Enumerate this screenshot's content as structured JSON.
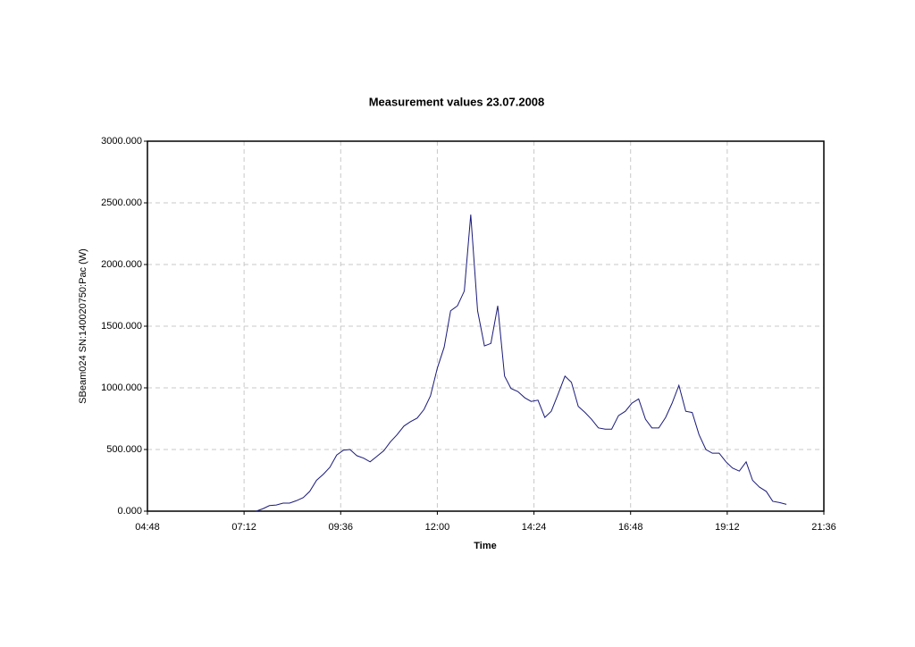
{
  "chart_data": {
    "type": "line",
    "title": "Measurement values 23.07.2008",
    "x_label": "Time",
    "y_label": "SBeam024 SN:140020750:Pac (W)",
    "x": [
      7.5,
      7.67,
      7.83,
      8,
      8.17,
      8.33,
      8.5,
      8.67,
      8.83,
      9,
      9.17,
      9.33,
      9.5,
      9.67,
      9.83,
      10,
      10.17,
      10.33,
      10.5,
      10.67,
      10.83,
      11,
      11.17,
      11.33,
      11.5,
      11.67,
      11.83,
      12,
      12.17,
      12.33,
      12.5,
      12.67,
      12.83,
      13,
      13.17,
      13.33,
      13.5,
      13.67,
      13.83,
      14,
      14.17,
      14.33,
      14.5,
      14.67,
      14.83,
      15,
      15.17,
      15.33,
      15.5,
      15.67,
      15.83,
      16,
      16.17,
      16.33,
      16.5,
      16.67,
      16.83,
      17,
      17.17,
      17.33,
      17.5,
      17.67,
      17.83,
      18,
      18.17,
      18.33,
      18.5,
      18.67,
      18.83,
      19,
      19.17,
      19.33,
      19.5,
      19.67,
      19.83,
      20,
      20.17,
      20.33,
      20.5,
      20.67
    ],
    "series": [
      {
        "name": "SBeam024 SN:140020750:Pac (W)",
        "color": "#1a1a7a",
        "values": [
          0,
          20,
          45,
          50,
          65,
          65,
          85,
          110,
          160,
          250,
          300,
          355,
          455,
          495,
          500,
          450,
          430,
          400,
          445,
          490,
          560,
          620,
          690,
          725,
          755,
          825,
          935,
          1160,
          1330,
          1625,
          1665,
          1785,
          2405,
          1625,
          1340,
          1360,
          1665,
          1095,
          995,
          970,
          920,
          890,
          900,
          760,
          810,
          950,
          1095,
          1045,
          850,
          800,
          745,
          675,
          665,
          665,
          775,
          810,
          875,
          910,
          745,
          675,
          675,
          760,
          875,
          1020,
          810,
          800,
          620,
          500,
          470,
          470,
          400,
          350,
          325,
          400,
          250,
          195,
          160,
          80,
          70,
          55
        ]
      }
    ],
    "xlim": [
      4.8,
      21.6
    ],
    "xticks": [
      {
        "value": 4.8,
        "label": "04:48"
      },
      {
        "value": 7.2,
        "label": "07:12"
      },
      {
        "value": 9.6,
        "label": "09:36"
      },
      {
        "value": 12,
        "label": "12:00"
      },
      {
        "value": 14.4,
        "label": "14:24"
      },
      {
        "value": 16.8,
        "label": "16:48"
      },
      {
        "value": 19.2,
        "label": "19:12"
      },
      {
        "value": 21.6,
        "label": "21:36"
      }
    ],
    "ylim": [
      0,
      3000
    ],
    "yticks": [
      {
        "value": 0,
        "label": "0.000"
      },
      {
        "value": 500,
        "label": "500.000"
      },
      {
        "value": 1000,
        "label": "1000.000"
      },
      {
        "value": 1500,
        "label": "1500.000"
      },
      {
        "value": 2000,
        "label": "2000.000"
      },
      {
        "value": 2500,
        "label": "2500.000"
      },
      {
        "value": 3000,
        "label": "3000.000"
      }
    ],
    "grid": true
  }
}
